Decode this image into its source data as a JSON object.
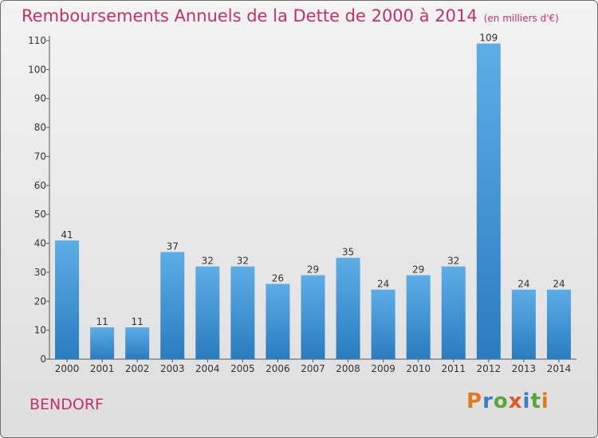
{
  "header": {
    "title": "Remboursements Annuels de la Dette de 2000 à 2014",
    "subtitle": "(en milliers d'€)"
  },
  "footer": {
    "commune": "BENDORF",
    "logo_text": "Proxiti"
  },
  "colors": {
    "title": "#c4306a",
    "bar_top": "#5dade6",
    "bar_bottom": "#2a7cbf",
    "logo_letters": [
      "#e07a1f",
      "#3a7ec4",
      "#5aa83a",
      "#e0581f",
      "#3a7ec4",
      "#5aa83a",
      "#e07a1f"
    ]
  },
  "chart_data": {
    "type": "bar",
    "categories": [
      "2000",
      "2001",
      "2002",
      "2003",
      "2004",
      "2005",
      "2006",
      "2007",
      "2008",
      "2009",
      "2010",
      "2011",
      "2012",
      "2013",
      "2014"
    ],
    "values": [
      41,
      11,
      11,
      37,
      32,
      32,
      26,
      29,
      35,
      24,
      29,
      32,
      109,
      24,
      24
    ],
    "ylim": [
      0,
      110
    ],
    "yticks": [
      0,
      10,
      20,
      30,
      40,
      50,
      60,
      70,
      80,
      90,
      100,
      110
    ],
    "grid": false,
    "data_labels": true
  }
}
